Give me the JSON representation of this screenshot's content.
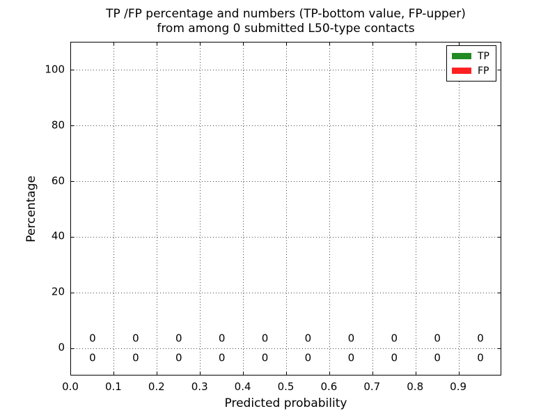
{
  "chart_data": {
    "type": "bar",
    "title": "TP /FP percentage and numbers (TP-bottom value, FP-upper)\nfrom among 0 submitted L50-type contacts",
    "title_lines": [
      "TP /FP percentage and numbers (TP-bottom value, FP-upper)",
      "from among 0 submitted L50-type contacts"
    ],
    "xlabel": "Predicted probability",
    "ylabel": "Percentage",
    "xlim": [
      0.0,
      1.0
    ],
    "ylim": [
      -10,
      110
    ],
    "x_ticks": [
      0.0,
      0.1,
      0.2,
      0.3,
      0.4,
      0.5,
      0.6,
      0.7,
      0.8,
      0.9
    ],
    "x_tick_labels": [
      "0.0",
      "0.1",
      "0.2",
      "0.3",
      "0.4",
      "0.5",
      "0.6",
      "0.7",
      "0.8",
      "0.9"
    ],
    "y_ticks": [
      0,
      20,
      40,
      60,
      80,
      100
    ],
    "y_tick_labels": [
      "0",
      "20",
      "40",
      "60",
      "80",
      "100"
    ],
    "grid": {
      "on": true,
      "style": "dotted",
      "color": "#444444"
    },
    "categories": [
      0.05,
      0.15,
      0.25,
      0.35,
      0.45,
      0.55,
      0.65,
      0.75,
      0.85,
      0.95
    ],
    "series": [
      {
        "name": "FP",
        "color": "#FF2121",
        "values": [
          0,
          0,
          0,
          0,
          0,
          0,
          0,
          0,
          0,
          0
        ],
        "value_label_y": 3.5
      },
      {
        "name": "TP",
        "color": "#228B22",
        "values": [
          0,
          0,
          0,
          0,
          0,
          0,
          0,
          0,
          0,
          0
        ],
        "value_label_y": -3.5
      }
    ],
    "legend": {
      "position": "upper right",
      "entries": [
        {
          "label": "TP",
          "color": "#228B22"
        },
        {
          "label": "FP",
          "color": "#FF2121"
        }
      ]
    }
  }
}
